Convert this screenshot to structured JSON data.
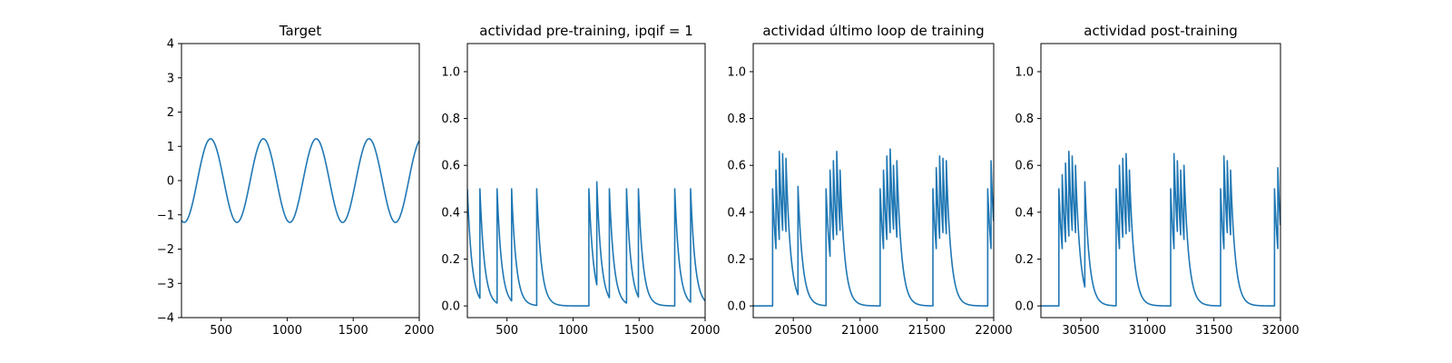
{
  "chart_data": [
    {
      "type": "line",
      "title": "Target",
      "xlabel": "",
      "ylabel": "",
      "xlim": [
        200,
        2000
      ],
      "ylim": [
        -4,
        4
      ],
      "xticks": [
        500,
        1000,
        1500,
        2000
      ],
      "yticks": [
        -4,
        -3,
        -2,
        -1,
        0,
        1,
        2,
        3,
        4
      ],
      "xtick_labels": [
        "500",
        "1000",
        "1500",
        "2000"
      ],
      "ytick_labels": [
        "−4",
        "−3",
        "−2",
        "−1",
        "0",
        "1",
        "2",
        "3",
        "4"
      ],
      "grid": false,
      "series": [
        {
          "kind": "sine",
          "amplitude": 1.22,
          "period": 400,
          "first_peak_x": 420,
          "x_start": 200,
          "x_end": 2000
        }
      ]
    },
    {
      "type": "line",
      "title": "actividad pre-training, ipqif = 1",
      "xlabel": "",
      "ylabel": "",
      "xlim": [
        200,
        2000
      ],
      "ylim": [
        -0.05,
        1.12
      ],
      "xticks": [
        500,
        1000,
        1500,
        2000
      ],
      "yticks": [
        0.0,
        0.2,
        0.4,
        0.6,
        0.8,
        1.0
      ],
      "xtick_labels": [
        "500",
        "1000",
        "1500",
        "2000"
      ],
      "ytick_labels": [
        "0.0",
        "0.2",
        "0.4",
        "0.6",
        "0.8",
        "1.0"
      ],
      "grid": false,
      "series": [
        {
          "kind": "spikes",
          "decay": 35,
          "start": [
            200,
            0.5
          ],
          "x_start": 200,
          "x_end": 2000,
          "spikes": [
            [
              295,
              0.5
            ],
            [
              425,
              0.5
            ],
            [
              535,
              0.5
            ],
            [
              725,
              0.5
            ],
            [
              1120,
              0.5
            ],
            [
              1180,
              0.53
            ],
            [
              1275,
              0.5
            ],
            [
              1405,
              0.5
            ],
            [
              1495,
              0.5
            ],
            [
              1770,
              0.5
            ],
            [
              1890,
              0.5
            ]
          ]
        }
      ]
    },
    {
      "type": "line",
      "title": "actividad último loop de training",
      "xlabel": "",
      "ylabel": "",
      "xlim": [
        20200,
        22000
      ],
      "ylim": [
        -0.05,
        1.12
      ],
      "xticks": [
        20500,
        21000,
        21500,
        22000
      ],
      "yticks": [
        0.0,
        0.2,
        0.4,
        0.6,
        0.8,
        1.0
      ],
      "xtick_labels": [
        "20500",
        "21000",
        "21500",
        "22000"
      ],
      "ytick_labels": [
        "0.0",
        "0.2",
        "0.4",
        "0.6",
        "0.8",
        "1.0"
      ],
      "grid": false,
      "series": [
        {
          "kind": "spikes",
          "decay": 35,
          "start": [
            20200,
            0.0
          ],
          "x_start": 20200,
          "x_end": 22000,
          "spikes": [
            [
              20345,
              0.5
            ],
            [
              20370,
              0.58
            ],
            [
              20395,
              0.66
            ],
            [
              20420,
              0.65
            ],
            [
              20445,
              0.63
            ],
            [
              20535,
              0.51
            ],
            [
              20745,
              0.5
            ],
            [
              20775,
              0.58
            ],
            [
              20800,
              0.62
            ],
            [
              20825,
              0.66
            ],
            [
              20850,
              0.58
            ],
            [
              21150,
              0.5
            ],
            [
              21175,
              0.58
            ],
            [
              21200,
              0.64
            ],
            [
              21225,
              0.67
            ],
            [
              21250,
              0.6
            ],
            [
              21275,
              0.62
            ],
            [
              21545,
              0.5
            ],
            [
              21570,
              0.59
            ],
            [
              21595,
              0.64
            ],
            [
              21620,
              0.63
            ],
            [
              21645,
              0.62
            ],
            [
              21955,
              0.5
            ],
            [
              21980,
              0.62
            ]
          ]
        }
      ]
    },
    {
      "type": "line",
      "title": "actividad post-training",
      "xlabel": "",
      "ylabel": "",
      "xlim": [
        30200,
        32000
      ],
      "ylim": [
        -0.05,
        1.12
      ],
      "xticks": [
        30500,
        31000,
        31500,
        32000
      ],
      "yticks": [
        0.0,
        0.2,
        0.4,
        0.6,
        0.8,
        1.0
      ],
      "xtick_labels": [
        "30500",
        "31000",
        "31500",
        "32000"
      ],
      "ytick_labels": [
        "0.0",
        "0.2",
        "0.4",
        "0.6",
        "0.8",
        "1.0"
      ],
      "grid": false,
      "series": [
        {
          "kind": "spikes",
          "decay": 35,
          "start": [
            30200,
            0.0
          ],
          "x_start": 30200,
          "x_end": 32000,
          "spikes": [
            [
              30335,
              0.5
            ],
            [
              30360,
              0.56
            ],
            [
              30385,
              0.61
            ],
            [
              30410,
              0.66
            ],
            [
              30435,
              0.64
            ],
            [
              30460,
              0.6
            ],
            [
              30530,
              0.53
            ],
            [
              30765,
              0.5
            ],
            [
              30790,
              0.6
            ],
            [
              30815,
              0.63
            ],
            [
              30840,
              0.65
            ],
            [
              30865,
              0.58
            ],
            [
              31175,
              0.5
            ],
            [
              31200,
              0.65
            ],
            [
              31225,
              0.62
            ],
            [
              31250,
              0.58
            ],
            [
              31275,
              0.6
            ],
            [
              31550,
              0.5
            ],
            [
              31575,
              0.64
            ],
            [
              31600,
              0.62
            ],
            [
              31625,
              0.58
            ],
            [
              31955,
              0.5
            ],
            [
              31980,
              0.59
            ]
          ]
        }
      ]
    }
  ],
  "colors": {
    "line": "#1f77b4",
    "axes": "#000000",
    "background": "#ffffff"
  }
}
